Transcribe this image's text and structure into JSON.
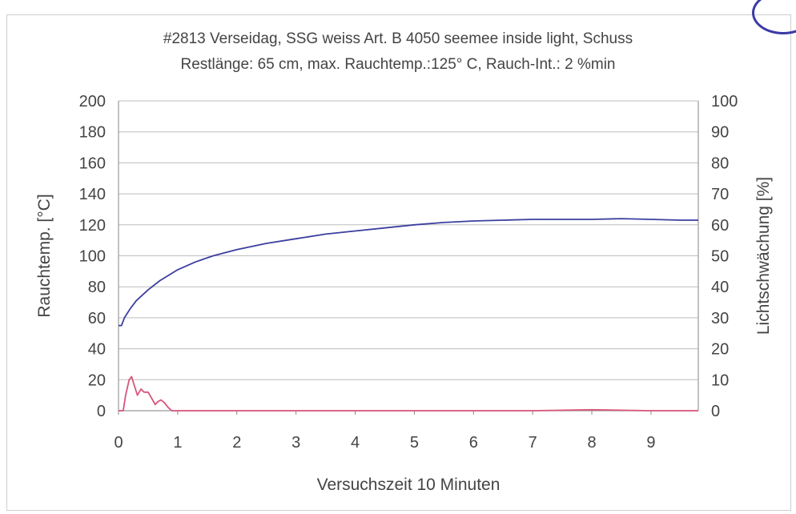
{
  "chart_data": {
    "type": "line",
    "title": "#2813 Verseidag, SSG weiss Art. B 4050 seemee inside light, Schuss",
    "subtitle": "Restlänge: 65 cm, max. Rauchtemp.:125° C, Rauch-Int.: 2 %min",
    "xlabel": "Versuchszeit 10 Minuten",
    "ylabel": "Rauchtemp. [°C]",
    "y2label": "Lichtschwächung [%]",
    "xlim": [
      0,
      9.8
    ],
    "ylim": [
      0,
      200
    ],
    "y2lim": [
      0,
      100
    ],
    "xticks": [
      "0",
      "1",
      "2",
      "3",
      "4",
      "5",
      "6",
      "7",
      "8",
      "9"
    ],
    "yticks": [
      "0",
      "20",
      "40",
      "60",
      "80",
      "100",
      "120",
      "140",
      "160",
      "180",
      "200"
    ],
    "y2ticks": [
      "0",
      "10",
      "20",
      "30",
      "40",
      "50",
      "60",
      "70",
      "80",
      "90",
      "100"
    ],
    "grid": true,
    "series": [
      {
        "axis": "left",
        "color": "#3b3f9e",
        "x": [
          0,
          0.05,
          0.1,
          0.2,
          0.3,
          0.5,
          0.7,
          1.0,
          1.3,
          1.6,
          2.0,
          2.5,
          3.0,
          3.5,
          4.0,
          4.5,
          5.0,
          5.5,
          6.0,
          6.5,
          7.0,
          7.5,
          8.0,
          8.5,
          9.0,
          9.5,
          9.8
        ],
        "y": [
          55,
          55,
          60,
          66,
          71,
          78,
          84,
          91,
          96,
          100,
          104,
          108,
          111,
          114,
          116,
          118,
          120,
          121.5,
          122.5,
          123,
          123.5,
          123.5,
          123.5,
          124,
          123.5,
          123,
          123
        ]
      },
      {
        "axis": "right",
        "color": "#d9557a",
        "x": [
          0,
          0.08,
          0.12,
          0.18,
          0.22,
          0.27,
          0.32,
          0.38,
          0.43,
          0.5,
          0.56,
          0.62,
          0.67,
          0.72,
          0.78,
          0.84,
          0.9,
          1.0,
          2.0,
          3.0,
          4.0,
          5.0,
          6.0,
          7.0,
          8.0,
          9.0,
          9.8
        ],
        "y": [
          0,
          0,
          5,
          10,
          11,
          8,
          5,
          7,
          6,
          6,
          4,
          2,
          3,
          3.5,
          2.5,
          1,
          0,
          0,
          0,
          0,
          0,
          0,
          0,
          0,
          0.3,
          0,
          0
        ]
      }
    ]
  },
  "colors": {
    "axis_text": "#444444",
    "right_label": "#d9557a",
    "grid": "#bdbdbd",
    "frame": "#cfcfcf",
    "corner_mark": "#3a3aa8"
  }
}
